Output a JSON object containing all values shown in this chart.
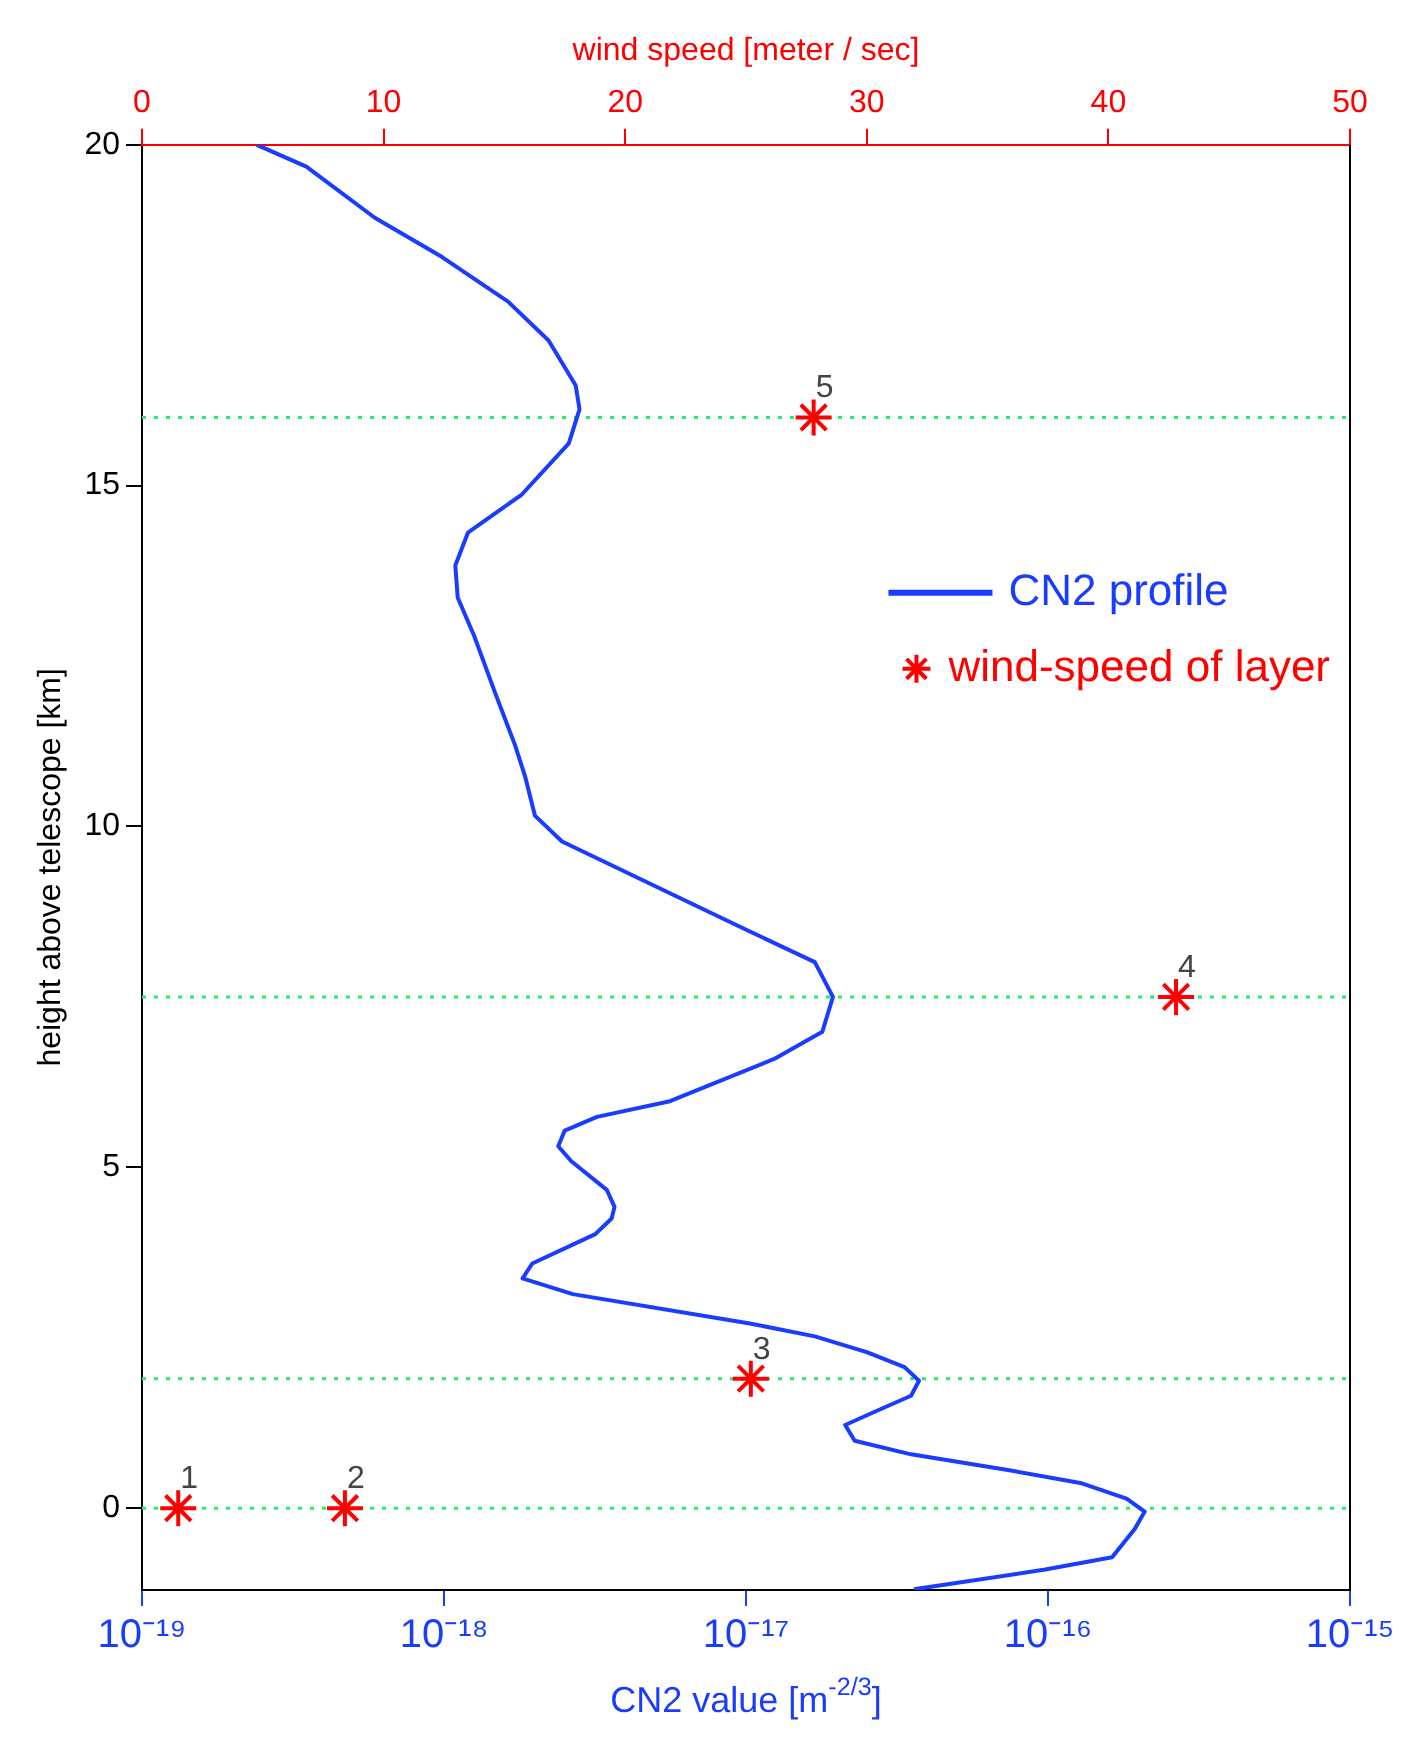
{
  "chart_data": {
    "type": "line",
    "xlabel": "CN2 value [m$^{-2/3}$]",
    "ylabel": "height above telescope [km]",
    "x2label": "wind speed [meter / sec]",
    "log": "x",
    "xlim": [
      1e-19,
      1e-15
    ],
    "xticks": [
      {
        "value": 1e-19,
        "label": "10⁻¹⁹"
      },
      {
        "value": 1e-18,
        "label": "10⁻¹⁸"
      },
      {
        "value": 1e-17,
        "label": "10⁻¹⁷"
      },
      {
        "value": 1e-16,
        "label": "10⁻¹⁶"
      },
      {
        "value": 1e-15,
        "label": "10⁻¹⁵"
      }
    ],
    "x2lim": [
      0,
      50
    ],
    "x2ticks": [
      0,
      10,
      20,
      30,
      40,
      50
    ],
    "ylim": [
      -1.2,
      20
    ],
    "yticks": [
      0,
      5,
      10,
      15,
      20
    ],
    "grid": false,
    "legend": "top right",
    "line_style": "solid",
    "series": [
      {
        "name": "CN2 profile",
        "marker": "none",
        "color": "#1a3cff",
        "x": [
          2.4e-19,
          3.5e-19,
          5.9e-19,
          9.8e-19,
          1.63e-18,
          2.22e-18,
          2.73e-18,
          2.81e-18,
          2.59e-18,
          1.81e-18,
          1.2e-18,
          1.09e-18,
          1.11e-18,
          1.26e-18,
          1.48e-18,
          1.72e-18,
          1.86e-18,
          2e-18,
          2.46e-18,
          5.6e-18,
          1.03e-17,
          1.69e-17,
          1.94e-17,
          1.79e-17,
          1.24e-17,
          5.6e-18,
          3.21e-18,
          2.51e-18,
          2.39e-18,
          2.64e-18,
          3.46e-18,
          3.67e-18,
          3.59e-18,
          3.17e-18,
          1.96e-18,
          1.82e-18,
          2.67e-18,
          1.03e-17,
          1.69e-17,
          2.51e-17,
          3.35e-17,
          3.74e-17,
          3.52e-17,
          2.75e-17,
          2.13e-17,
          2.29e-17,
          3.52e-17,
          7.36e-17,
          1.28e-16,
          1.82e-16,
          2.09e-16,
          1.94e-16,
          1.63e-16,
          9.8e-17,
          3.6e-17
        ],
        "values": [
          20,
          19.68,
          18.93,
          18.36,
          17.7,
          17.13,
          16.47,
          16.12,
          15.62,
          14.87,
          14.31,
          13.83,
          13.36,
          12.79,
          11.95,
          11.19,
          10.72,
          10.16,
          9.78,
          9.02,
          8.46,
          8.01,
          7.5,
          6.99,
          6.59,
          5.97,
          5.74,
          5.54,
          5.31,
          5.09,
          4.67,
          4.42,
          4.25,
          4.02,
          3.59,
          3.37,
          3.14,
          2.71,
          2.52,
          2.29,
          2.07,
          1.87,
          1.65,
          1.44,
          1.22,
          0.99,
          0.79,
          0.56,
          0.37,
          0.14,
          -0.05,
          -0.3,
          -0.72,
          -0.9,
          -1.19
        ]
      },
      {
        "name": "wind-speed of layer",
        "type": "scatter",
        "marker": "cross",
        "axis": "x2",
        "color": "#ff0000",
        "x": [
          1.5,
          8.4,
          25.2,
          42.8,
          27.8
        ],
        "values": [
          0,
          0,
          1.9,
          7.5,
          16
        ]
      }
    ],
    "ref_lines": [
      {
        "axis": "y",
        "value": 0,
        "color": "#22ee66",
        "line_style": "dotted"
      },
      {
        "axis": "y",
        "value": 1.9,
        "color": "#22ee66",
        "line_style": "dotted"
      },
      {
        "axis": "y",
        "value": 7.5,
        "color": "#22ee66",
        "line_style": "dotted"
      },
      {
        "axis": "y",
        "value": 16,
        "color": "#22ee66",
        "line_style": "dotted"
      }
    ],
    "annotations": [
      "1",
      "2",
      "3",
      "4",
      "5"
    ]
  }
}
